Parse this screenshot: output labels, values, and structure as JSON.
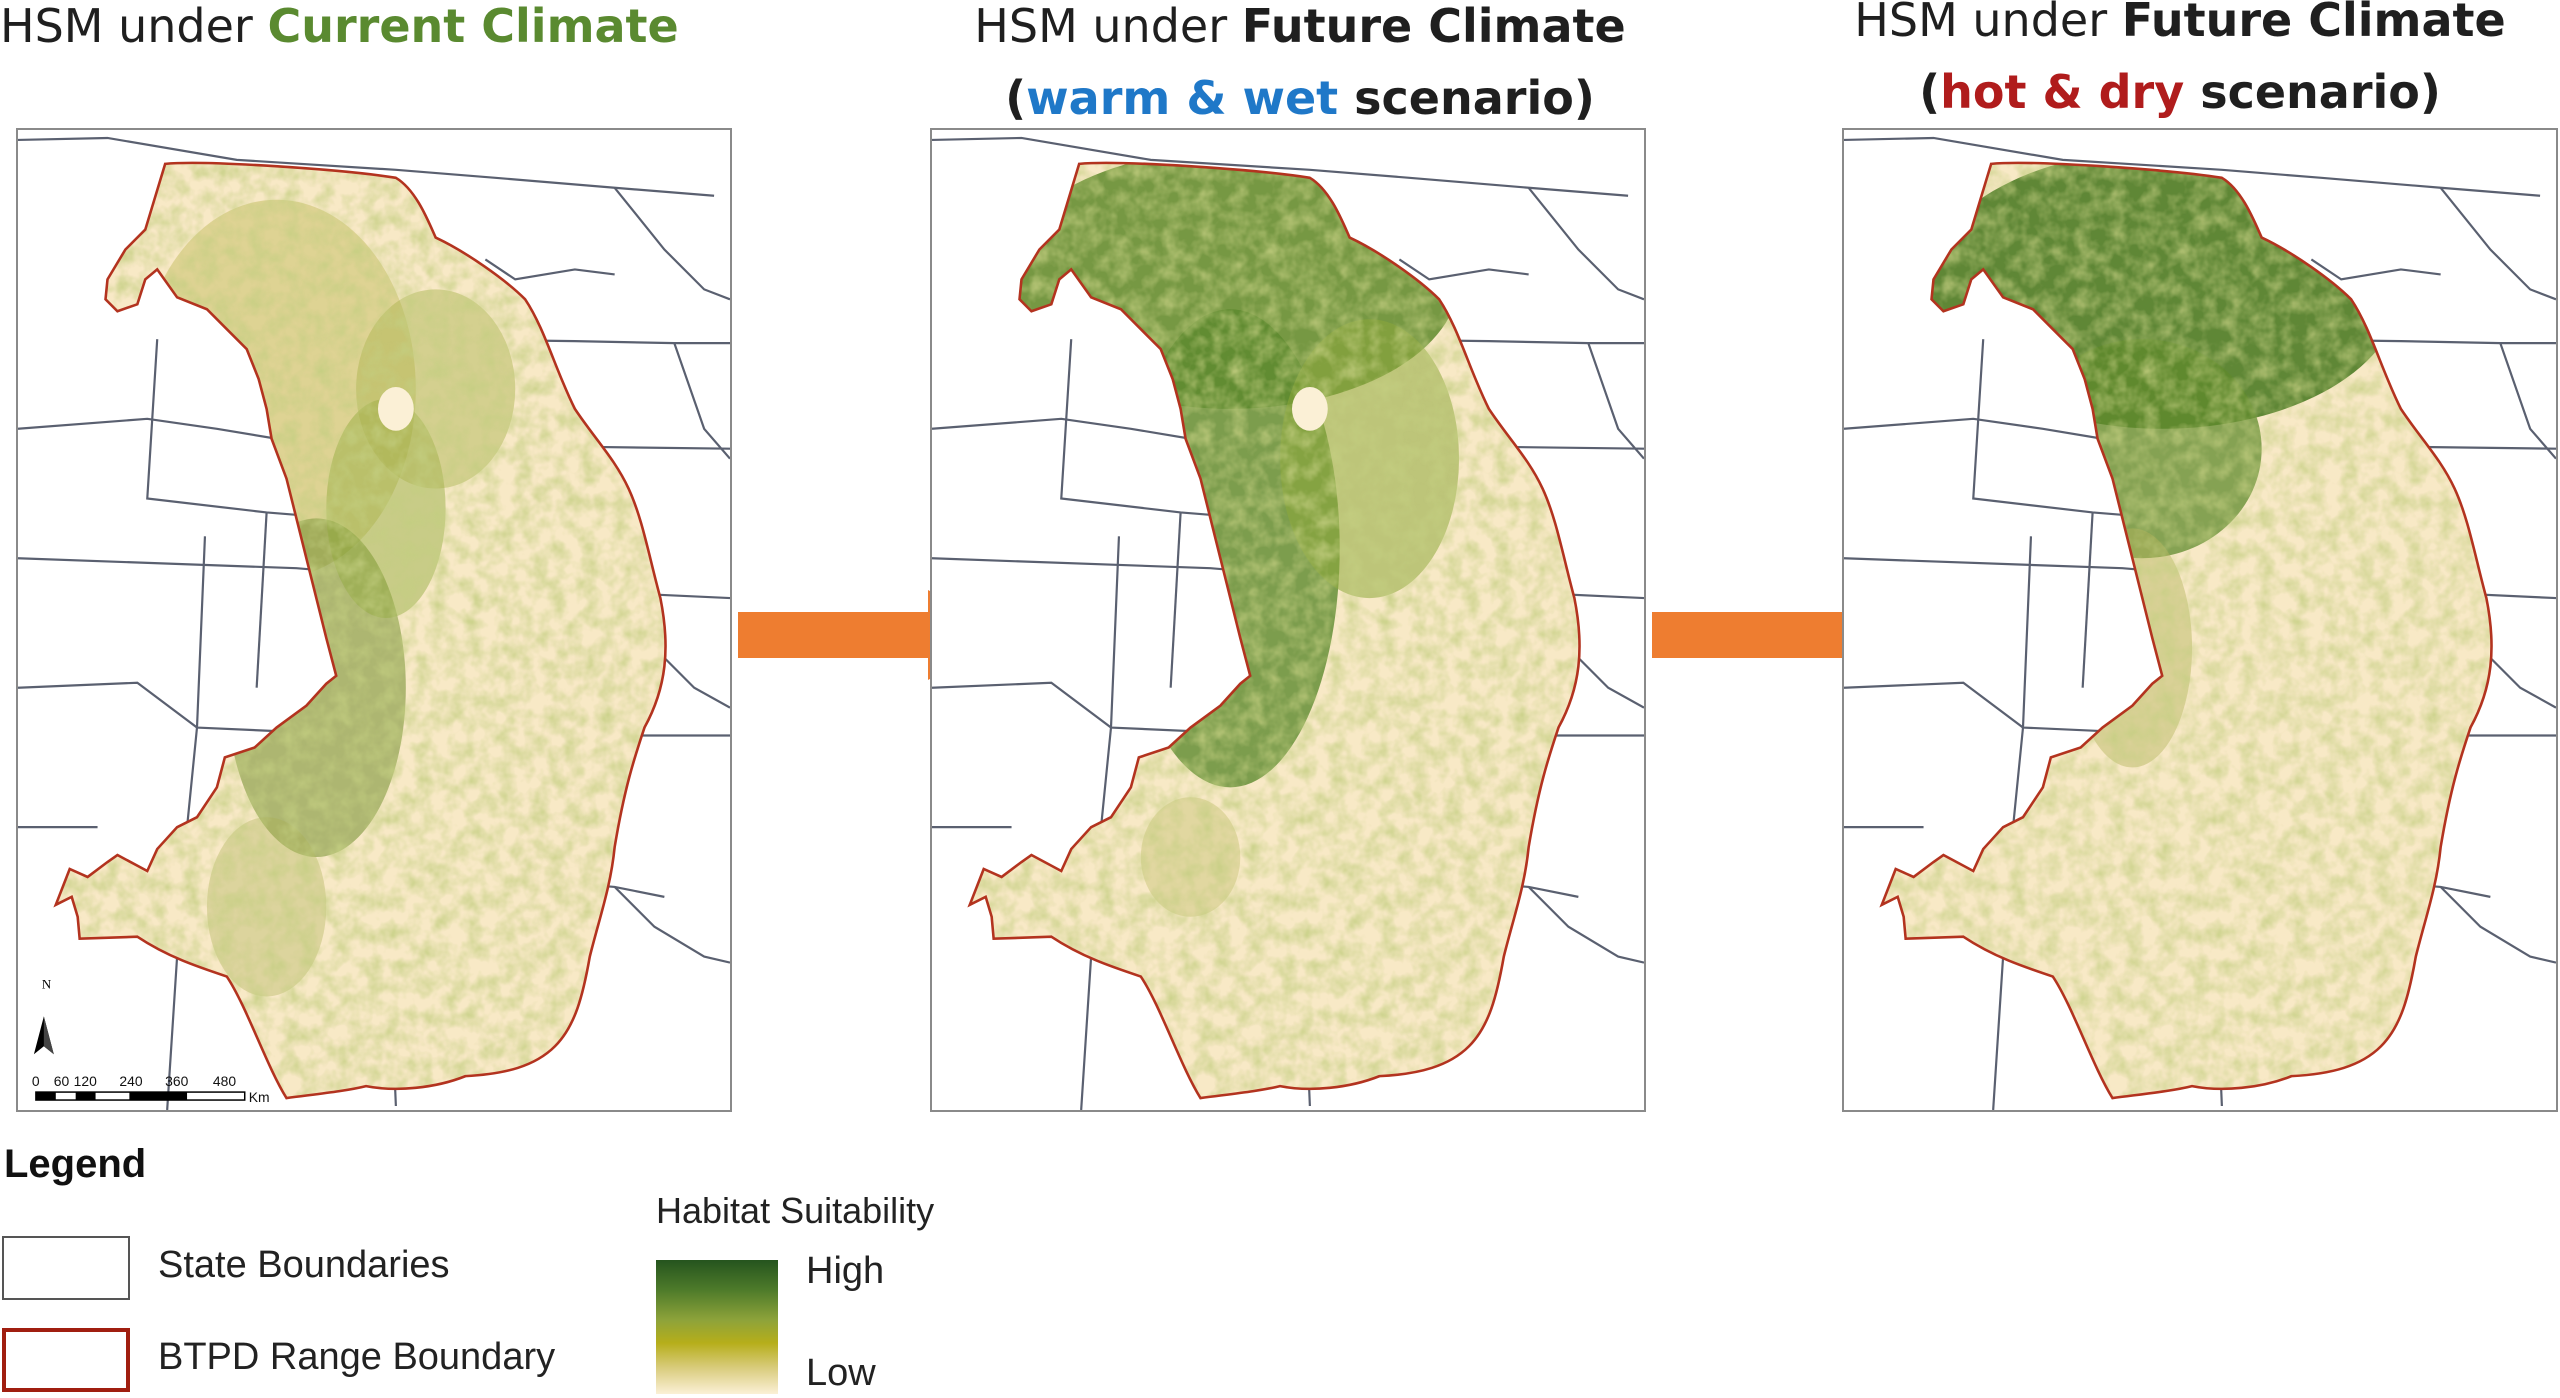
{
  "titles": [
    {
      "prefix": "HSM under ",
      "emph": "Current Climate",
      "emph_color": "#5a8a30",
      "line2": null
    },
    {
      "prefix": "HSM under ",
      "emph": "Future Climate",
      "emph_color": "#1f1f1f",
      "line2": {
        "open": "(",
        "scenario": "warm & wet",
        "scenario_color": "#1f78c8",
        "rest": " scenario)"
      }
    },
    {
      "prefix": "HSM under ",
      "emph": "Future Climate",
      "emph_color": "#1f1f1f",
      "line2": {
        "open": "(",
        "scenario": "hot & dry",
        "scenario_color": "#b01c1c",
        "rest": " scenario)"
      }
    }
  ],
  "maps": [
    {
      "name": "current-climate",
      "suitability": "moderate"
    },
    {
      "name": "warm-wet-scenario",
      "suitability": "high-north"
    },
    {
      "name": "hot-dry-scenario",
      "suitability": "low-south"
    }
  ],
  "map_furniture": {
    "north_label": "N",
    "scale_ticks": [
      "0",
      "60",
      "120",
      "240",
      "360",
      "480"
    ],
    "scale_unit": "Km"
  },
  "legend": {
    "title": "Legend",
    "items": [
      {
        "label": "State Boundaries",
        "border_color": "#555555"
      },
      {
        "label": "BTPD Range Boundary",
        "border_color": "#a01e10"
      }
    ],
    "ramp_title": "Habitat Suitability",
    "ramp_high": "High",
    "ramp_low": "Low"
  },
  "colors": {
    "arrow": "#ee7d30",
    "range_fill": "#f8e9c6",
    "range_border": "#b3331f",
    "state_lines": "#5a6070",
    "high": "#2f5e1f",
    "medium": "#8da83a",
    "low": "#fbf0d6"
  }
}
